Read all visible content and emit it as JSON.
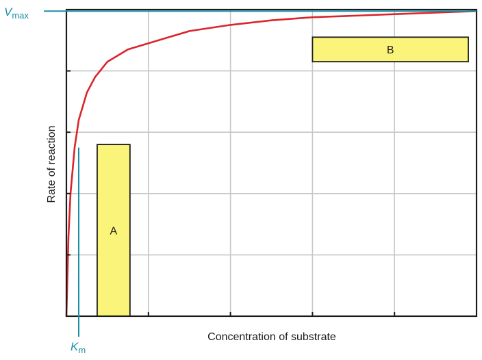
{
  "chart_data": {
    "type": "line",
    "title": "",
    "xlabel": "Concentration of substrate",
    "ylabel": "Rate of reaction",
    "xlim": [
      0,
      1
    ],
    "ylim": [
      0,
      1
    ],
    "grid": true,
    "series": [
      {
        "color": "#d9252b",
        "x": [
          0,
          0.005,
          0.01,
          0.02,
          0.03,
          0.05,
          0.07,
          0.1,
          0.15,
          0.2,
          0.25,
          0.3,
          0.4,
          0.5,
          0.6,
          0.7,
          0.8,
          0.9,
          1.0
        ],
        "y": [
          0,
          0.26,
          0.4,
          0.55,
          0.64,
          0.73,
          0.78,
          0.83,
          0.87,
          0.89,
          0.91,
          0.93,
          0.95,
          0.965,
          0.975,
          0.98,
          0.985,
          0.99,
          0.995
        ]
      }
    ],
    "reference_lines": {
      "vmax": {
        "y": 0.995,
        "label_main": "V",
        "label_sub": "max",
        "color": "#1a8fa8"
      },
      "km": {
        "x": 0.03,
        "label_main": "K",
        "label_sub": "m",
        "color": "#1a8fa8"
      }
    },
    "boxes": [
      {
        "label": "A",
        "x0": 0.075,
        "x1": 0.155,
        "y0": 0.0,
        "y1": 0.56,
        "fill": "#fbf47a"
      },
      {
        "label": "B",
        "x0": 0.6,
        "x1": 0.98,
        "y0": 0.83,
        "y1": 0.91,
        "fill": "#fbf47a"
      }
    ],
    "grid_color": "#c6c6c6",
    "axis_color": "#1a1a1a"
  }
}
